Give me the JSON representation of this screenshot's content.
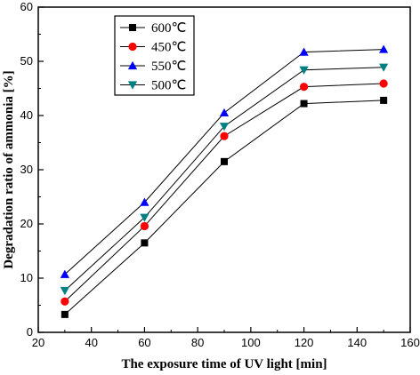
{
  "chart_data": {
    "type": "line",
    "x": [
      30,
      60,
      90,
      120,
      150
    ],
    "series": [
      {
        "name": "600℃",
        "values": [
          3.3,
          16.5,
          31.5,
          42.2,
          42.8
        ],
        "color": "#000000",
        "marker": "square"
      },
      {
        "name": "450℃",
        "values": [
          5.7,
          19.6,
          36.2,
          45.3,
          45.9
        ],
        "color": "#ff0000",
        "marker": "circle"
      },
      {
        "name": "550℃",
        "values": [
          10.7,
          24.0,
          40.5,
          51.7,
          52.2
        ],
        "color": "#0000ff",
        "marker": "triangle-up"
      },
      {
        "name": "500℃",
        "values": [
          7.7,
          21.2,
          38.0,
          48.4,
          48.9
        ],
        "color": "#008080",
        "marker": "triangle-down"
      }
    ],
    "title": "",
    "xlabel": "The exposure time of UV light [min]",
    "ylabel": "Degradation ratio of ammonia [%]",
    "xlim": [
      20,
      160
    ],
    "ylim": [
      0,
      60
    ],
    "xticks": [
      "20",
      "40",
      "60",
      "80",
      "100",
      "120",
      "140",
      "160"
    ],
    "yticks": [
      "0",
      "10",
      "20",
      "30",
      "40",
      "50",
      "60"
    ],
    "line_color": "#000000",
    "grid": false,
    "legend_position": "top-left"
  }
}
